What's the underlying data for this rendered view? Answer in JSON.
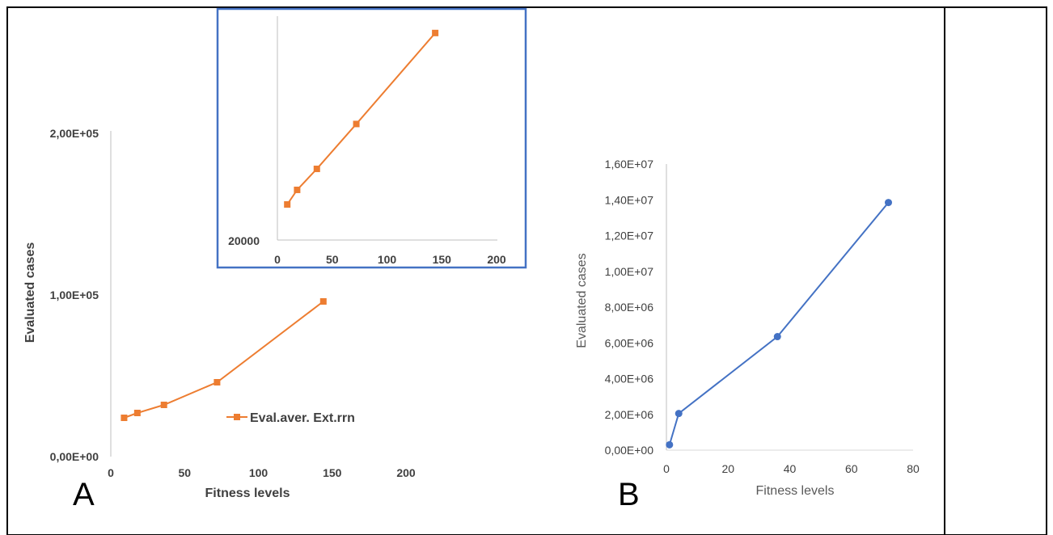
{
  "panels": {
    "a_label": "A",
    "b_label": "B"
  },
  "colors": {
    "orange": "#ed7d31",
    "blue": "#4472c4",
    "inset_border": "#4472c4",
    "axis": "#bfbfbf",
    "text": "#404040"
  },
  "chart_data": [
    {
      "id": "A-main",
      "type": "line",
      "x": [
        9,
        18,
        36,
        72,
        144
      ],
      "series": [
        {
          "name": "Eval.aver. Ext.rrn",
          "values": [
            24000,
            27000,
            32000,
            46000,
            96000
          ],
          "marker": "square",
          "color": "#ed7d31"
        }
      ],
      "xlabel": "Fitness levels",
      "ylabel": "Evaluated cases",
      "xlim": [
        0,
        200
      ],
      "ylim": [
        0,
        200000
      ],
      "xticks": [
        "0",
        "50",
        "100",
        "150",
        "200"
      ],
      "yticks": [
        "0,00E+00",
        "1,00E+05",
        "2,00E+05"
      ],
      "legend": "inside-lower-right",
      "grid": false
    },
    {
      "id": "A-inset",
      "type": "line",
      "x": [
        9,
        18,
        36,
        72,
        144
      ],
      "series": [
        {
          "name": "",
          "values": [
            24000,
            27000,
            32000,
            46000,
            96000
          ],
          "marker": "square",
          "color": "#ed7d31"
        }
      ],
      "xlim": [
        0,
        200
      ],
      "xticks": [
        "0",
        "50",
        "100",
        "150",
        "200"
      ],
      "yticks": [
        "20000"
      ],
      "yscale": "log",
      "grid": false
    },
    {
      "id": "B",
      "type": "line",
      "x": [
        1,
        4,
        36,
        72
      ],
      "series": [
        {
          "name": "",
          "values": [
            300000,
            2050000,
            6350000,
            13850000
          ],
          "marker": "circle",
          "color": "#4472c4"
        }
      ],
      "xlabel": "Fitness levels",
      "ylabel": "Evaluated cases",
      "xlim": [
        0,
        80
      ],
      "ylim": [
        0,
        16000000
      ],
      "xticks": [
        "0",
        "20",
        "40",
        "60",
        "80"
      ],
      "yticks": [
        "0,00E+00",
        "2,00E+06",
        "4,00E+06",
        "6,00E+06",
        "8,00E+06",
        "1,00E+07",
        "1,20E+07",
        "1,40E+07",
        "1,60E+07"
      ],
      "legend": "none",
      "grid": false
    }
  ]
}
